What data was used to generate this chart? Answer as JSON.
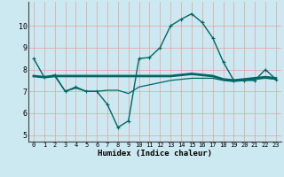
{
  "xlabel": "Humidex (Indice chaleur)",
  "bg_color": "#cce8f0",
  "grid_color": "#e8a0a0",
  "line_color": "#006666",
  "xlim": [
    -0.5,
    23.5
  ],
  "ylim": [
    4.7,
    11.1
  ],
  "yticks": [
    5,
    6,
    7,
    8,
    9,
    10
  ],
  "xticks": [
    0,
    1,
    2,
    3,
    4,
    5,
    6,
    7,
    8,
    9,
    10,
    11,
    12,
    13,
    14,
    15,
    16,
    17,
    18,
    19,
    20,
    21,
    22,
    23
  ],
  "line1_x": [
    0,
    1,
    2,
    3,
    4,
    5,
    6,
    7,
    8,
    9,
    10,
    11,
    12,
    13,
    14,
    15,
    16,
    17,
    18,
    19,
    20,
    21,
    22,
    23
  ],
  "line1_y": [
    8.5,
    7.65,
    7.75,
    7.0,
    7.2,
    7.0,
    7.0,
    6.4,
    5.35,
    5.65,
    8.5,
    8.55,
    9.0,
    10.0,
    10.3,
    10.55,
    10.15,
    9.45,
    8.35,
    7.5,
    7.5,
    7.5,
    8.0,
    7.55
  ],
  "line2_x": [
    0,
    1,
    2,
    3,
    4,
    5,
    6,
    7,
    8,
    9,
    10,
    11,
    12,
    13,
    14,
    15,
    16,
    17,
    18,
    19,
    20,
    21,
    22,
    23
  ],
  "line2_y": [
    7.7,
    7.65,
    7.7,
    7.7,
    7.7,
    7.7,
    7.7,
    7.7,
    7.7,
    7.7,
    7.7,
    7.7,
    7.7,
    7.7,
    7.75,
    7.8,
    7.75,
    7.7,
    7.55,
    7.5,
    7.55,
    7.6,
    7.65,
    7.6
  ],
  "line3_x": [
    0,
    1,
    2,
    3,
    4,
    5,
    6,
    7,
    8,
    9,
    10,
    11,
    12,
    13,
    14,
    15,
    16,
    17,
    18,
    19,
    20,
    21,
    22,
    23
  ],
  "line3_y": [
    7.7,
    7.65,
    7.7,
    7.0,
    7.15,
    7.0,
    7.0,
    7.05,
    7.05,
    6.9,
    7.2,
    7.3,
    7.4,
    7.5,
    7.55,
    7.6,
    7.6,
    7.6,
    7.5,
    7.45,
    7.5,
    7.55,
    7.6,
    7.55
  ]
}
